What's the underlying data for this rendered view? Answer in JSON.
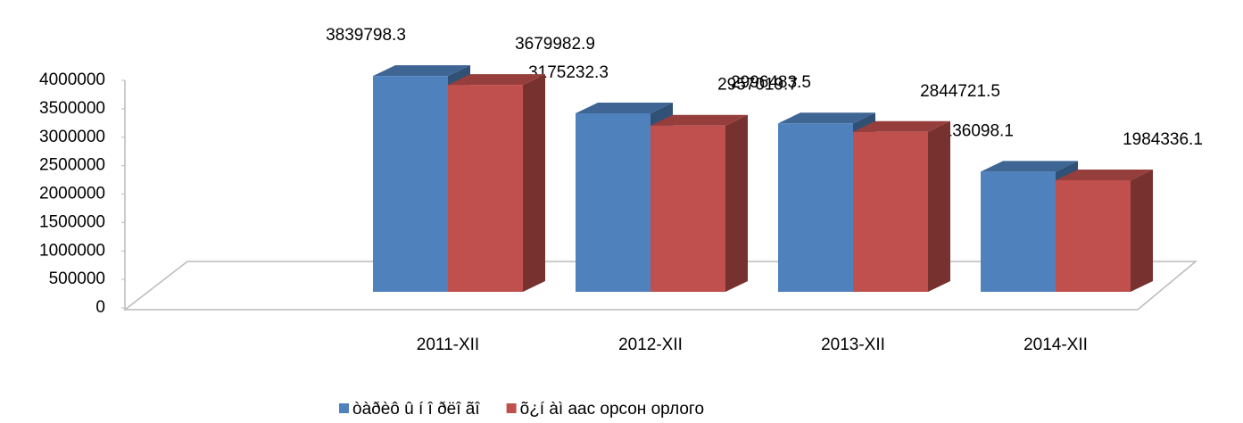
{
  "chart_data": {
    "type": "bar3d",
    "categories": [
      "2011-XII",
      "2012-XII",
      "2013-XII",
      "2014-XII"
    ],
    "series": [
      {
        "name": "òàðèô û í î ðëî ãî",
        "color": "#4f81bd",
        "values": [
          3839798.3,
          3175232.3,
          2996483.5,
          2136098.1
        ]
      },
      {
        "name": "õ¿í àì аас орсон орлого",
        "color": "#c0504d",
        "values": [
          3679982.9,
          2957019.7,
          2844721.5,
          1984336.1
        ]
      }
    ],
    "ylim": [
      0,
      4000000
    ],
    "yticks": [
      0,
      500000,
      1000000,
      1500000,
      2000000,
      2500000,
      3000000,
      3500000,
      4000000
    ],
    "legend": "bottom"
  }
}
